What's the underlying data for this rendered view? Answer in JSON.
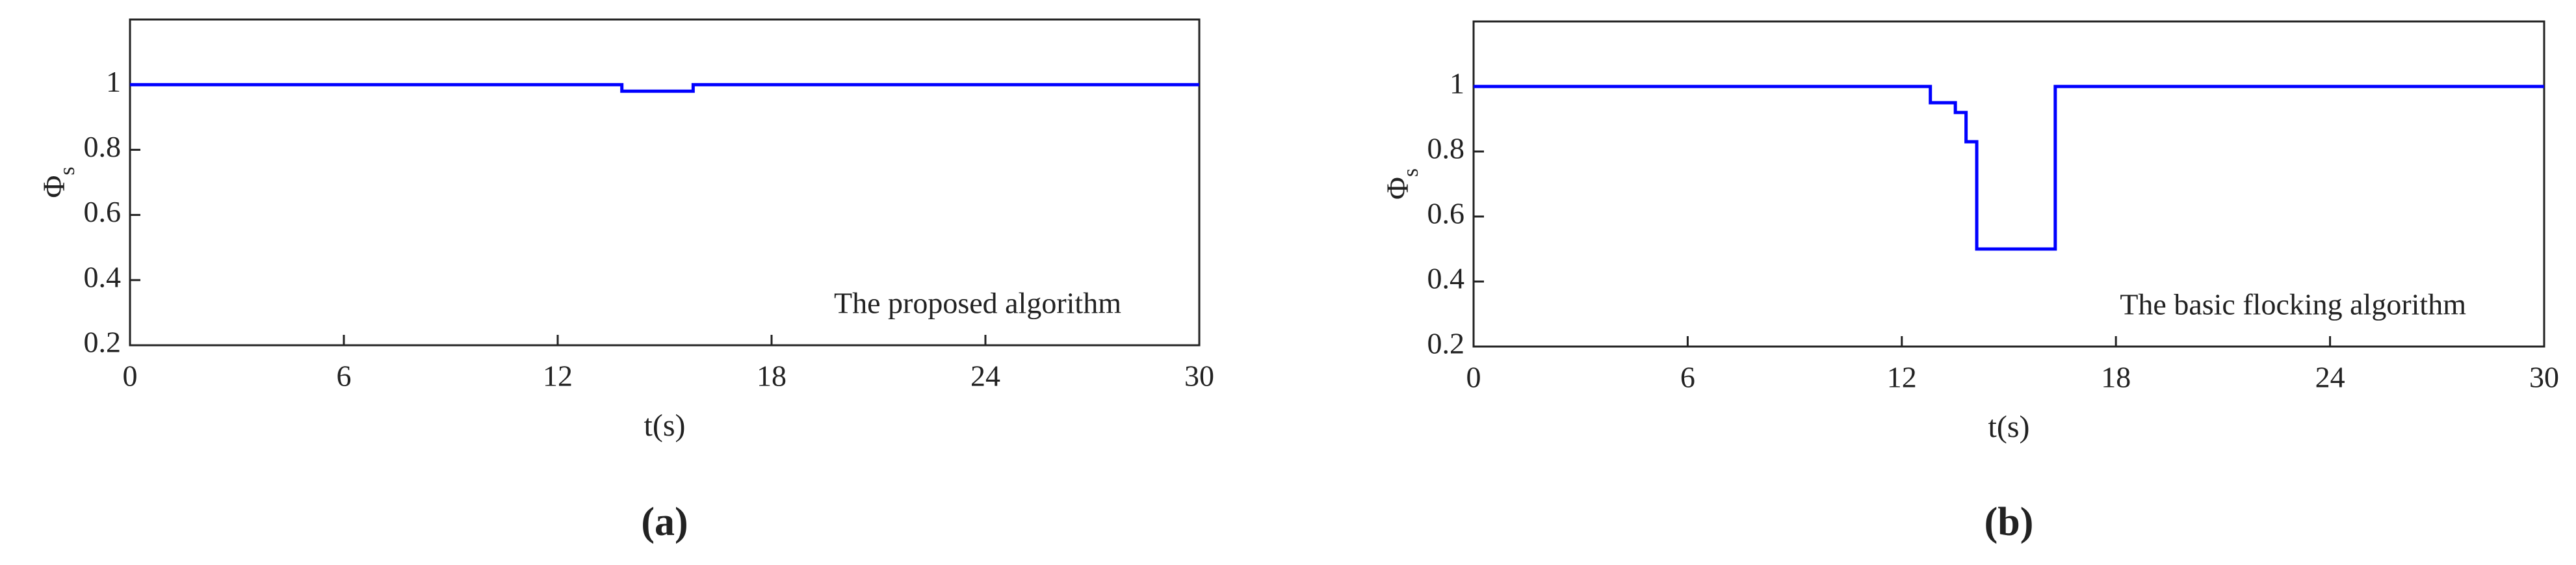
{
  "chart_data": [
    {
      "type": "line",
      "caption": "(a)",
      "xlabel": "t(s)",
      "ylabel": "Φ",
      "ylabel_sub": "s",
      "annotation": "The proposed algorithm",
      "xlim": [
        0,
        30
      ],
      "ylim": [
        0.2,
        1.2
      ],
      "xticks": [
        0,
        6,
        12,
        18,
        24,
        30
      ],
      "yticks": [
        0.2,
        0.4,
        0.6,
        0.8,
        1
      ],
      "series": [
        {
          "color": "#0000ff",
          "x": [
            0,
            13.8,
            13.8,
            15.8,
            15.8,
            30
          ],
          "values": [
            1,
            1,
            0.98,
            0.98,
            1,
            1
          ]
        }
      ]
    },
    {
      "type": "line",
      "caption": "(b)",
      "xlabel": "t(s)",
      "ylabel": "Φ",
      "ylabel_sub": "s",
      "annotation": "The basic flocking algorithm",
      "xlim": [
        0,
        30
      ],
      "ylim": [
        0.2,
        1.2
      ],
      "xticks": [
        0,
        6,
        12,
        18,
        24,
        30
      ],
      "yticks": [
        0.2,
        0.4,
        0.6,
        0.8,
        1
      ],
      "series": [
        {
          "color": "#0000ff",
          "x": [
            0,
            12.8,
            12.8,
            13.5,
            13.5,
            13.8,
            13.8,
            14.1,
            14.1,
            16.3,
            16.3,
            30
          ],
          "values": [
            1,
            1,
            0.95,
            0.95,
            0.92,
            0.92,
            0.83,
            0.83,
            0.5,
            0.5,
            1,
            1
          ]
        }
      ]
    }
  ]
}
